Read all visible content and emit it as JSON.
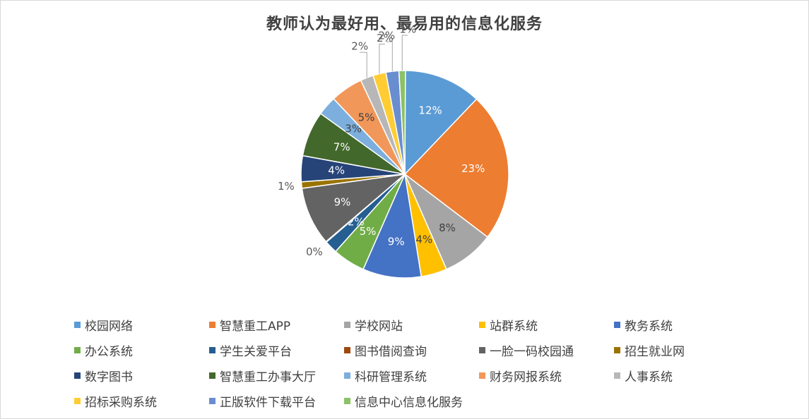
{
  "chart_data": {
    "type": "pie",
    "title": "教师认为最好用、最易用的信息化服务",
    "categories": [
      "校园网络",
      "智慧重工APP",
      "学校网站",
      "站群系统",
      "教务系统",
      "办公系统",
      "学生关爱平台",
      "图书借阅查询",
      "一脸一码校园通",
      "招生就业网",
      "数字图书",
      "智慧重工办事大厅",
      "科研管理系统",
      "财务网报系统",
      "人事系统",
      "招标采购系统",
      "正版软件下载平台",
      "信息中心信息化服务"
    ],
    "values": [
      12,
      23,
      8,
      4,
      9,
      5,
      2,
      0,
      9,
      1,
      4,
      7,
      3,
      5,
      2,
      2,
      2,
      1
    ],
    "labels": [
      "12%",
      "23%",
      "8%",
      "4%",
      "9%",
      "5%",
      "2%",
      "0%",
      "9%",
      "1%",
      "4%",
      "7%",
      "3%",
      "5%",
      "2%",
      "2%",
      "2%",
      "1%"
    ],
    "colors": [
      "#5b9bd5",
      "#ed7d31",
      "#a5a5a5",
      "#ffc000",
      "#4472c4",
      "#70ad47",
      "#255e91",
      "#9e480e",
      "#636363",
      "#997300",
      "#264478",
      "#43682b",
      "#7cafdd",
      "#f1975a",
      "#b7b7b7",
      "#ffcd33",
      "#698ed0",
      "#8cc168"
    ],
    "legend_position": "bottom"
  }
}
